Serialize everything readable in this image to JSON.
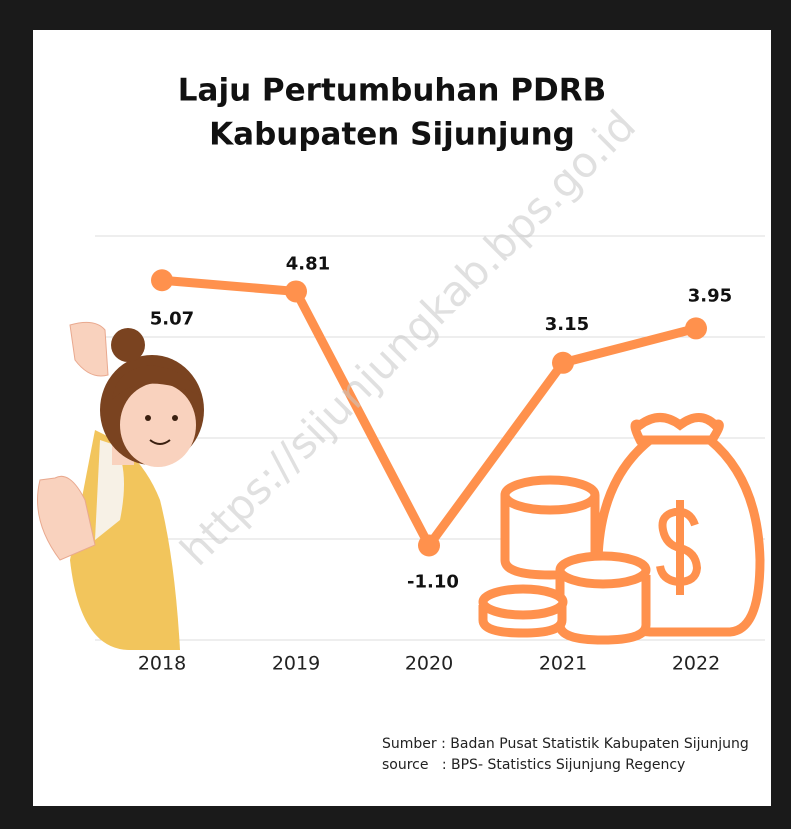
{
  "chart_data": {
    "type": "line",
    "title": [
      "Laju Pertumbuhan PDRB",
      "Kabupaten Sijunjung"
    ],
    "categories": [
      "2018",
      "2019",
      "2020",
      "2021",
      "2022"
    ],
    "values": [
      5.07,
      4.81,
      -1.1,
      3.15,
      3.95
    ],
    "value_labels": [
      "5.07",
      "4.81",
      "-1.10",
      "3.15",
      "3.95"
    ],
    "color": "#ff914d",
    "ylim": [
      -3.3,
      6.1
    ],
    "watermark": "https://sijunjungkab.bps.go.id",
    "source": [
      "Sumber : Badan Pusat Statistik Kabupaten Sijunjung",
      "source   : BPS- Statistics Sijunjung Regency"
    ]
  }
}
